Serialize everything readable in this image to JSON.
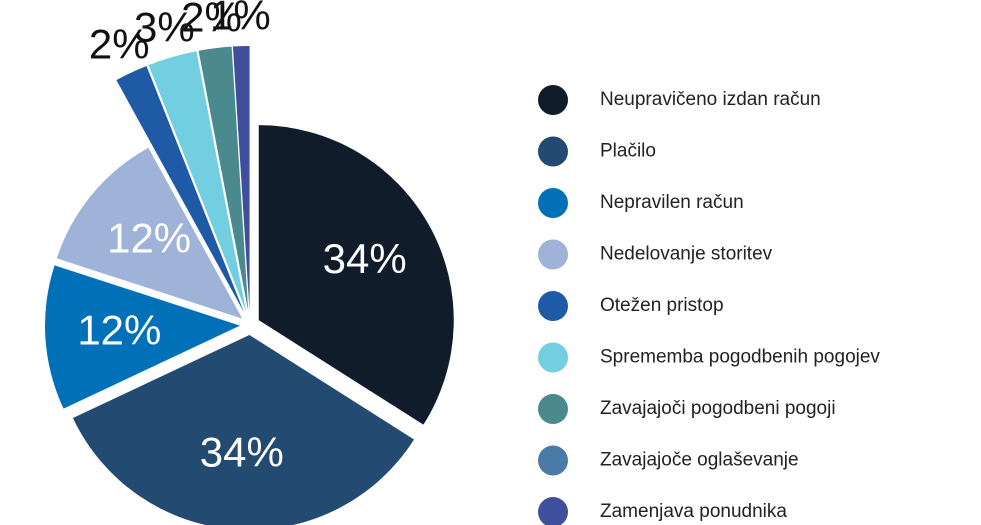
{
  "chart_data": {
    "type": "pie",
    "categories": [
      "Neupravičeno izdan račun",
      "Plačilo",
      "Nepravilen račun",
      "Nedelovanje storitev",
      "Otežen pristop",
      "Sprememba pogodbenih pogojev",
      "Zavajajoči pogodbeni pogoji",
      "Zavajajoče oglaševanje",
      "Zamenjava ponudnika"
    ],
    "values": [
      34,
      34,
      12,
      12,
      2,
      3,
      2,
      0,
      1
    ],
    "value_labels": [
      "34%",
      "34%",
      "12%",
      "12%",
      "2%",
      "3%",
      "2%",
      null,
      "1%"
    ],
    "colors": [
      "#111c2b",
      "#234a70",
      "#0070b8",
      "#9fb3d9",
      "#1f5aa6",
      "#72cfe0",
      "#4a8a8e",
      "#4a7aa6",
      "#3f4f9c"
    ],
    "legend": "right"
  }
}
